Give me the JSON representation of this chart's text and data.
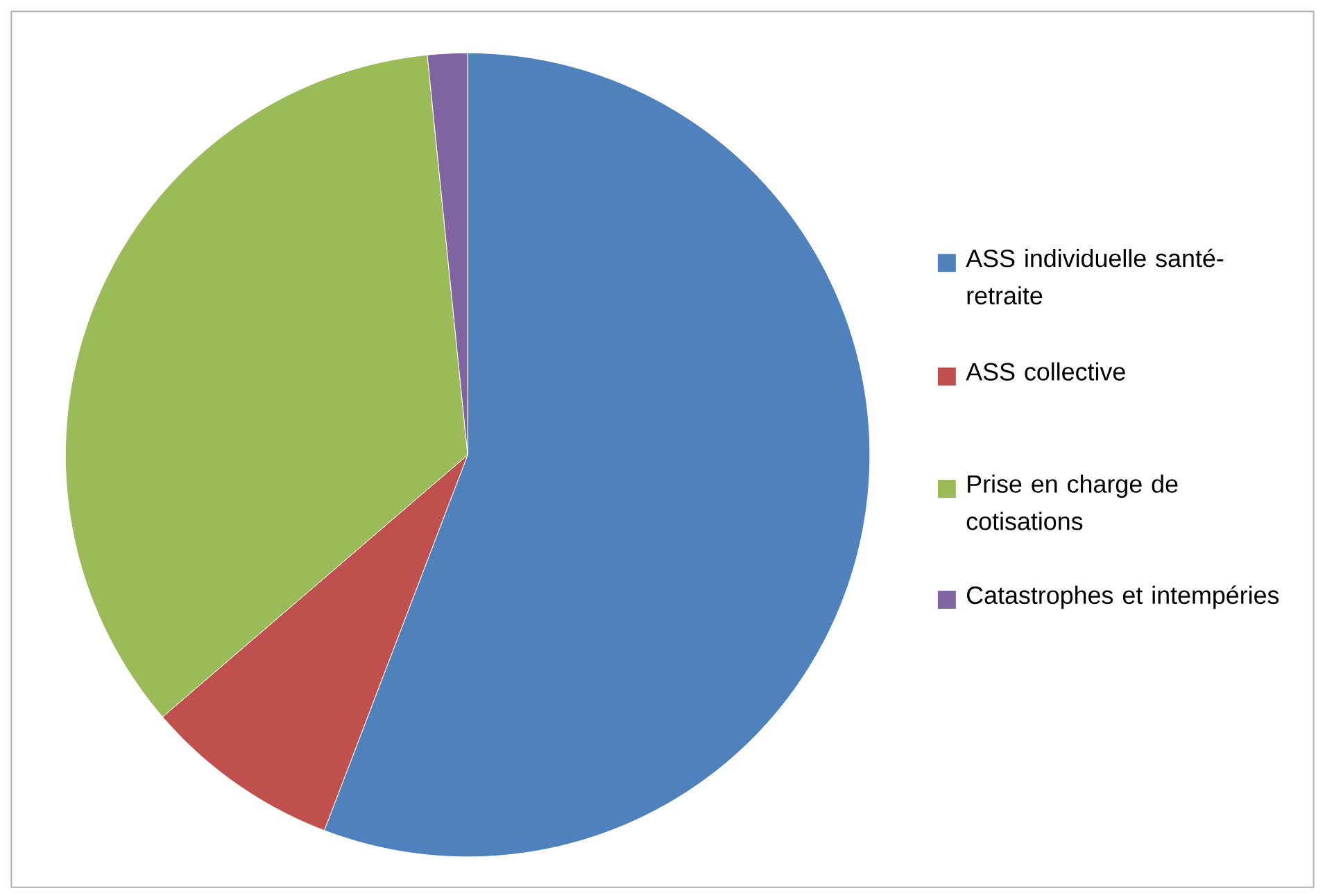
{
  "chart_data": {
    "type": "pie",
    "categories": [
      "ASS individuelle santé-retraite",
      "ASS collective",
      "Prise en charge de cotisations",
      "Catastrophes et intempéries"
    ],
    "values": [
      55.8,
      7.9,
      34.7,
      1.6
    ],
    "colors": [
      "#4f81bd",
      "#c0504d",
      "#9bbb59",
      "#8064a2"
    ],
    "legend": "right"
  }
}
